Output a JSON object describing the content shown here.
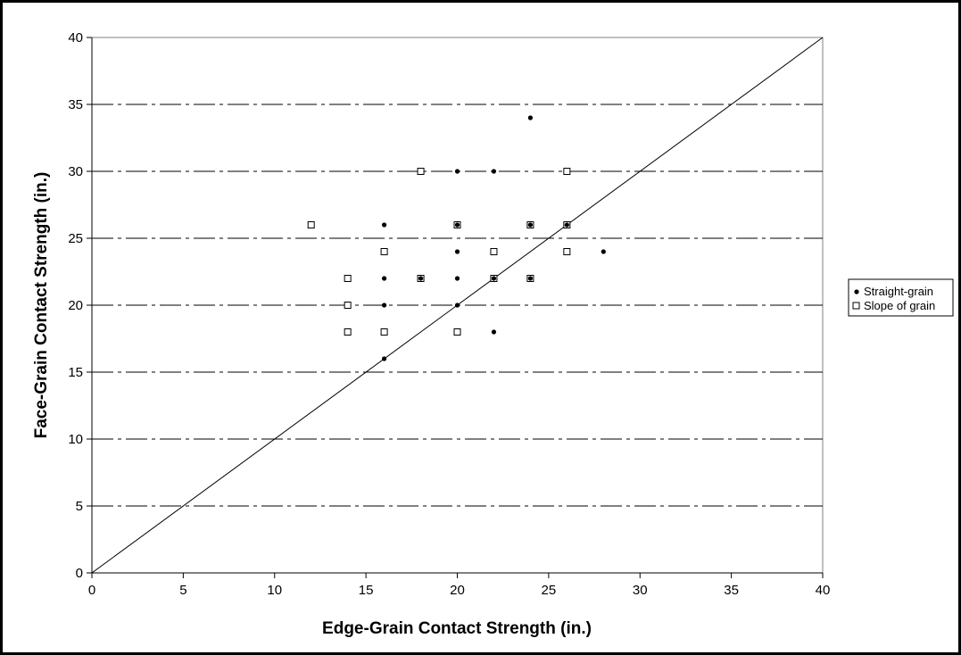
{
  "chart_data": {
    "type": "scatter",
    "title": "",
    "xlabel": "Edge-Grain Contact Strength  (in.)",
    "ylabel": "Face-Grain Contact Strength  (in.)",
    "xlim": [
      0,
      40
    ],
    "ylim": [
      0,
      40
    ],
    "x_ticks": [
      "0",
      "5",
      "10",
      "15",
      "20",
      "25",
      "30",
      "35",
      "40"
    ],
    "y_ticks": [
      "0",
      "5",
      "10",
      "15",
      "20",
      "25",
      "30",
      "35",
      "40"
    ],
    "grid": "horizontal dashed",
    "legend_position": "right",
    "reference_line": {
      "from": [
        0,
        0
      ],
      "to": [
        40,
        40
      ]
    },
    "series": [
      {
        "name": "Straight-grain",
        "marker": "filled-circle",
        "color": "#000000",
        "points": [
          [
            24,
            34
          ],
          [
            20,
            30
          ],
          [
            22,
            30
          ],
          [
            16,
            26
          ],
          [
            20,
            26
          ],
          [
            24,
            26
          ],
          [
            26,
            26
          ],
          [
            20,
            24
          ],
          [
            28,
            24
          ],
          [
            16,
            22
          ],
          [
            18,
            22
          ],
          [
            20,
            22
          ],
          [
            22,
            22
          ],
          [
            24,
            22
          ],
          [
            16,
            20
          ],
          [
            20,
            20
          ],
          [
            22,
            18
          ],
          [
            16,
            16
          ]
        ]
      },
      {
        "name": "Slope of grain",
        "marker": "open-square",
        "color": "#000000",
        "points": [
          [
            18,
            30
          ],
          [
            26,
            30
          ],
          [
            12,
            26
          ],
          [
            20,
            26
          ],
          [
            24,
            26
          ],
          [
            26,
            26
          ],
          [
            16,
            24
          ],
          [
            22,
            24
          ],
          [
            26,
            24
          ],
          [
            14,
            22
          ],
          [
            18,
            22
          ],
          [
            22,
            22
          ],
          [
            24,
            22
          ],
          [
            14,
            20
          ],
          [
            14,
            18
          ],
          [
            16,
            18
          ],
          [
            20,
            18
          ]
        ]
      }
    ]
  }
}
